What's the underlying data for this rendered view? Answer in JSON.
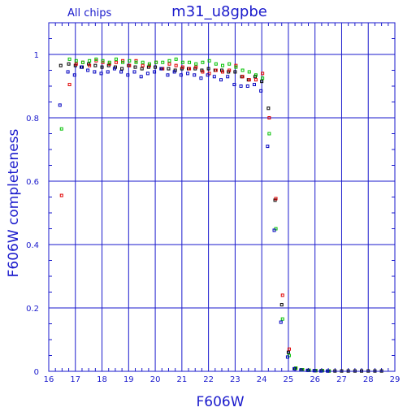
{
  "chart_data": {
    "type": "scatter",
    "title": "m31_u8gpbe",
    "subtitle": "All chips",
    "xlabel": "F606W",
    "ylabel": "F606W completeness",
    "xlim": [
      16,
      29
    ],
    "ylim": [
      0,
      1.1
    ],
    "x_ticks": [
      16,
      17,
      18,
      19,
      20,
      21,
      22,
      23,
      24,
      25,
      26,
      27,
      28,
      29
    ],
    "y_ticks": [
      0,
      0.2,
      0.4,
      0.6,
      0.8,
      1
    ],
    "y_tick_labels": [
      "0",
      "0.2",
      "0.4",
      "0.6",
      "0.8",
      "1"
    ],
    "grid": true,
    "colors": {
      "axis": "#1a1acc",
      "grid": "#1a1acc",
      "black": "#000000",
      "red": "#e00000",
      "green": "#00c000",
      "blue": "#0000c0"
    },
    "series": [
      {
        "color": "black",
        "x": [
          16.45,
          16.75,
          17.0,
          17.25,
          17.5,
          17.75,
          18.0,
          18.25,
          18.5,
          18.75,
          19.0,
          19.25,
          19.5,
          19.75,
          20.0,
          20.25,
          20.5,
          20.75,
          21.0,
          21.25,
          21.5,
          21.75,
          22.0,
          22.25,
          22.5,
          22.75,
          23.0,
          23.25,
          23.5,
          23.75,
          24.0,
          24.25,
          24.5,
          24.75,
          25.0,
          25.25,
          25.5,
          25.75,
          26.0,
          26.25,
          26.5,
          26.75,
          27.0,
          27.25,
          27.5,
          27.75,
          28.0,
          28.25,
          28.5
        ],
        "y": [
          0.965,
          0.97,
          0.965,
          0.96,
          0.97,
          0.965,
          0.96,
          0.965,
          0.96,
          0.955,
          0.965,
          0.96,
          0.955,
          0.96,
          0.96,
          0.955,
          0.955,
          0.95,
          0.955,
          0.955,
          0.955,
          0.95,
          0.955,
          0.95,
          0.95,
          0.945,
          0.945,
          0.93,
          0.92,
          0.93,
          0.915,
          0.83,
          0.54,
          0.21,
          0.06,
          0.008,
          0.005,
          0.003,
          0.002,
          0.002,
          0.001,
          0.001,
          0.001,
          0.001,
          0.001,
          0.001,
          0.001,
          0.001,
          0.001
        ]
      },
      {
        "color": "red",
        "x": [
          16.45,
          16.75,
          17.0,
          17.25,
          17.5,
          17.75,
          18.0,
          18.25,
          18.5,
          18.75,
          19.0,
          19.25,
          19.5,
          19.75,
          20.0,
          20.25,
          20.5,
          20.75,
          21.0,
          21.25,
          21.5,
          21.75,
          22.0,
          22.25,
          22.5,
          22.75,
          23.0,
          23.25,
          23.5,
          23.75,
          24.0,
          24.25,
          24.5,
          24.75,
          25.0,
          25.25,
          25.5,
          25.75,
          26.0,
          26.25,
          26.5
        ],
        "y": [
          0.555,
          0.905,
          0.97,
          0.975,
          0.965,
          0.98,
          0.975,
          0.97,
          0.975,
          0.98,
          0.965,
          0.98,
          0.965,
          0.965,
          0.975,
          0.955,
          0.97,
          0.965,
          0.96,
          0.955,
          0.96,
          0.945,
          0.94,
          0.95,
          0.945,
          0.95,
          0.965,
          0.93,
          0.92,
          0.92,
          0.94,
          0.8,
          0.545,
          0.24,
          0.07,
          0.01,
          0.005,
          0.003,
          0.002,
          0.002,
          0.001
        ]
      },
      {
        "color": "green",
        "x": [
          16.45,
          16.75,
          17.0,
          17.25,
          17.5,
          17.75,
          18.0,
          18.25,
          18.5,
          18.75,
          19.0,
          19.25,
          19.5,
          19.75,
          20.0,
          20.25,
          20.5,
          20.75,
          21.0,
          21.25,
          21.5,
          21.75,
          22.0,
          22.25,
          22.5,
          22.75,
          23.0,
          23.25,
          23.5,
          23.75,
          24.0,
          24.25,
          24.5,
          24.75,
          25.0,
          25.25,
          25.5,
          25.75,
          26.0,
          26.25,
          26.5
        ],
        "y": [
          0.765,
          0.985,
          0.98,
          0.975,
          0.98,
          0.985,
          0.98,
          0.975,
          0.985,
          0.975,
          0.98,
          0.975,
          0.975,
          0.97,
          0.975,
          0.975,
          0.98,
          0.985,
          0.975,
          0.975,
          0.97,
          0.975,
          0.98,
          0.97,
          0.965,
          0.97,
          0.96,
          0.95,
          0.945,
          0.935,
          0.925,
          0.75,
          0.45,
          0.165,
          0.05,
          0.01,
          0.005,
          0.003,
          0.002,
          0.002,
          0.001
        ]
      },
      {
        "color": "blue",
        "x": [
          16.45,
          16.75,
          17.0,
          17.25,
          17.5,
          17.75,
          18.0,
          18.25,
          18.5,
          18.75,
          19.0,
          19.25,
          19.5,
          19.75,
          20.0,
          20.25,
          20.5,
          20.75,
          21.0,
          21.25,
          21.5,
          21.75,
          22.0,
          22.25,
          22.5,
          22.75,
          23.0,
          23.25,
          23.5,
          23.75,
          24.0,
          24.25,
          24.5,
          24.75,
          25.0,
          25.25,
          25.5,
          25.75,
          26.0,
          26.25,
          26.5
        ],
        "y": [
          0.84,
          0.945,
          0.935,
          0.96,
          0.95,
          0.945,
          0.94,
          0.945,
          0.955,
          0.945,
          0.935,
          0.945,
          0.93,
          0.94,
          0.945,
          0.955,
          0.935,
          0.945,
          0.935,
          0.94,
          0.935,
          0.925,
          0.935,
          0.93,
          0.92,
          0.93,
          0.905,
          0.9,
          0.9,
          0.905,
          0.885,
          0.71,
          0.445,
          0.155,
          0.045,
          0.008,
          0.004,
          0.003,
          0.002,
          0.001,
          0.001
        ]
      }
    ]
  }
}
